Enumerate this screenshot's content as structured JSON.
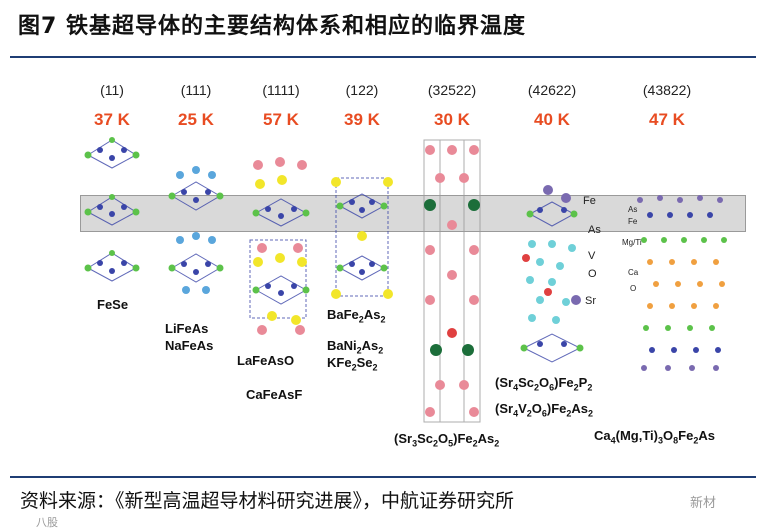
{
  "title": "图7  铁基超导体的主要结构体系和相应的临界温度",
  "source": "资料来源：《新型高温超导材料研究进展》，中航证券研究所",
  "watermark": "新材",
  "watermark_left": "八股",
  "columns": [
    {
      "code": "(11)",
      "tc": "37 K"
    },
    {
      "code": "(111)",
      "tc": "25 K"
    },
    {
      "code": "(1111)",
      "tc": "57 K"
    },
    {
      "code": "(122)",
      "tc": "39 K"
    },
    {
      "code": "(32522)",
      "tc": "30 K"
    },
    {
      "code": "(42622)",
      "tc": "40 K"
    },
    {
      "code": "(43822)",
      "tc": "47 K"
    }
  ],
  "compounds": {
    "fese": "FeSe",
    "lifeas": "LiFeAs",
    "nafeas": "NaFeAs",
    "lafeaso": "LaFeAsO",
    "cafeasf": "CaFeAsF",
    "bafe2as2": [
      "BaFe",
      "2",
      "As",
      "2"
    ],
    "bani2as2": [
      "BaNi",
      "2",
      "As",
      "2"
    ],
    "kfe2se2": [
      "KFe",
      "2",
      "Se",
      "2"
    ],
    "sr3sc2o5": [
      "(Sr",
      "3",
      "Sc",
      "2",
      "O",
      "5",
      ")Fe",
      "2",
      "As",
      "2"
    ],
    "sr4sc2o6": [
      "(Sr",
      "4",
      "Sc",
      "2",
      "O",
      "6",
      ")Fe",
      "2",
      "P",
      "2"
    ],
    "sr4v2o6": [
      "(Sr",
      "4",
      "V",
      "2",
      "O",
      "6",
      ")Fe",
      "2",
      "As",
      "2"
    ],
    "ca4": [
      "Ca",
      "4",
      "(Mg,Ti)",
      "3",
      "O",
      "8",
      "Fe",
      "2",
      "As"
    ]
  },
  "atom_labels": {
    "fe": "Fe",
    "as": "As",
    "v": "V",
    "o": "O",
    "sr": "Sr",
    "as_small": "As",
    "fe_small": "Fe",
    "mgti": "Mg/Ti",
    "ca": "Ca",
    "o_small": "O"
  },
  "colors": {
    "accent_rule": "#1f3d74",
    "tc_red": "#e84c22",
    "fe_blue": "#3a45a8",
    "as_green": "#5cc24a",
    "li_blue": "#5aa6dc",
    "la_pink": "#e98a98",
    "o_yellow": "#f2e62a",
    "sr_purple": "#7a6ab0",
    "v_cyan": "#6fd0d8",
    "sc_darkgreen": "#1c6e3a",
    "ca_orange": "#f0a040"
  }
}
